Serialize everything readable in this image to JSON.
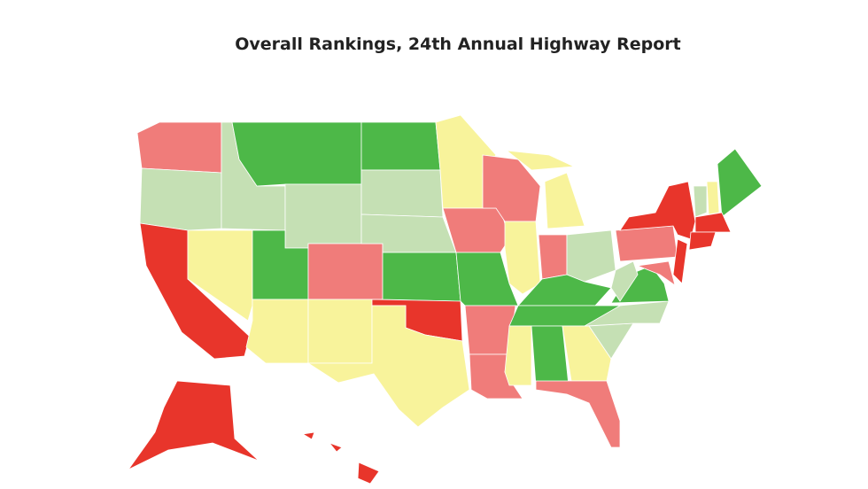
{
  "title": "Overall Rankings, 24th Annual Highway Report"
}
